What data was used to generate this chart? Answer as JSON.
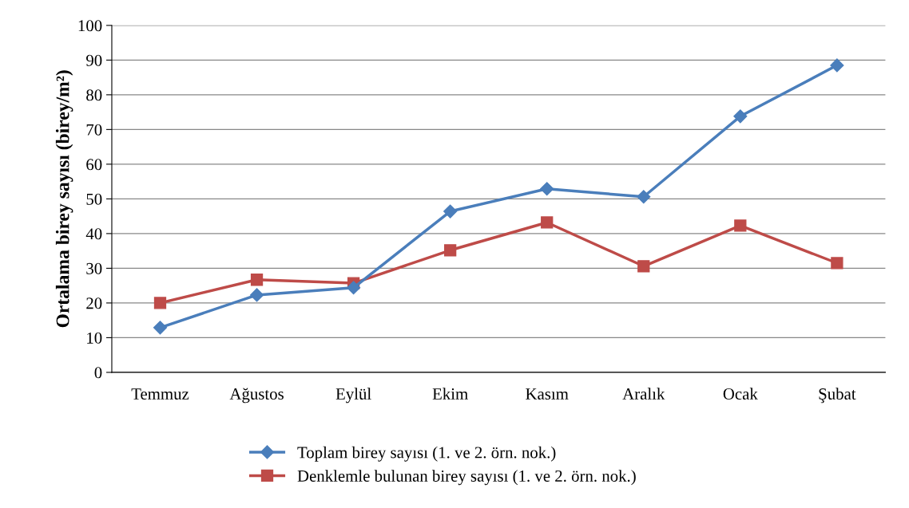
{
  "chart_data": {
    "type": "line",
    "ylabel": "Ortalama birey sayısı (birey/m²)",
    "categories": [
      "Temmuz",
      "Ağustos",
      "Eylül",
      "Ekim",
      "Kasım",
      "Aralık",
      "Ocak",
      "Şubat"
    ],
    "series": [
      {
        "name": "Toplam birey sayısı (1. ve 2. örn. nok.)",
        "color": "#4a7ebb",
        "marker": "diamond",
        "values": [
          12.9,
          22.3,
          24.4,
          46.4,
          52.9,
          50.6,
          73.8,
          88.5
        ]
      },
      {
        "name": "Denklemle bulunan birey sayısı (1. ve 2. örn. nok.)",
        "color": "#be4b48",
        "marker": "square",
        "values": [
          20.0,
          26.7,
          25.7,
          35.2,
          43.2,
          30.6,
          42.3,
          31.5
        ]
      }
    ],
    "ylim": [
      0,
      100
    ],
    "yticks": [
      0,
      10,
      20,
      30,
      40,
      50,
      60,
      70,
      80,
      90,
      100
    ],
    "grid": "y",
    "legend": "bottom",
    "line_style": "solid"
  }
}
